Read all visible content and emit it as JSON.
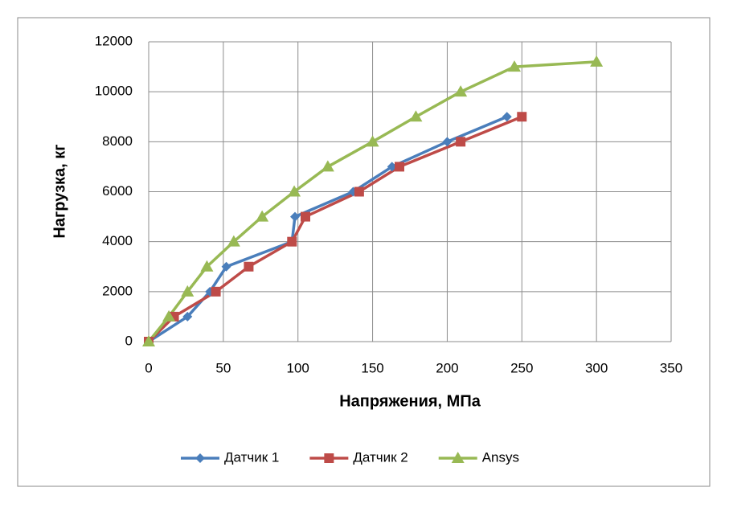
{
  "chart_data": {
    "type": "scatter-line",
    "x_label": "Напряжения, МПа",
    "y_label": "Нагрузка, кг",
    "xlim": [
      0,
      350
    ],
    "xticks": [
      0,
      50,
      100,
      150,
      200,
      250,
      300,
      350
    ],
    "ylim": [
      0,
      12000
    ],
    "yticks": [
      0,
      2000,
      4000,
      6000,
      8000,
      10000,
      12000
    ],
    "grid": true,
    "legend": "bottom",
    "series": [
      {
        "name": "Датчик 1",
        "color": "#4a7ebb",
        "marker": "diamond",
        "x": [
          0,
          26,
          41,
          52,
          96,
          98,
          137,
          163,
          200,
          240
        ],
        "values": [
          0,
          1000,
          2000,
          3000,
          4000,
          5000,
          6000,
          7000,
          8000,
          9000
        ]
      },
      {
        "name": "Датчик 2",
        "color": "#be4b48",
        "marker": "square",
        "x": [
          0,
          17,
          45,
          67,
          96,
          105,
          141,
          168,
          209,
          250
        ],
        "values": [
          0,
          1000,
          2000,
          3000,
          4000,
          5000,
          6000,
          7000,
          8000,
          9000
        ]
      },
      {
        "name": "Ansys",
        "color": "#98b954",
        "marker": "triangle",
        "x": [
          0,
          13.5,
          26,
          39,
          57,
          76,
          97.5,
          120,
          150,
          179,
          209,
          245,
          300
        ],
        "values": [
          0,
          1000,
          2000,
          3000,
          4000,
          5000,
          6000,
          7000,
          8000,
          9000,
          10000,
          11000,
          11200
        ]
      }
    ]
  }
}
